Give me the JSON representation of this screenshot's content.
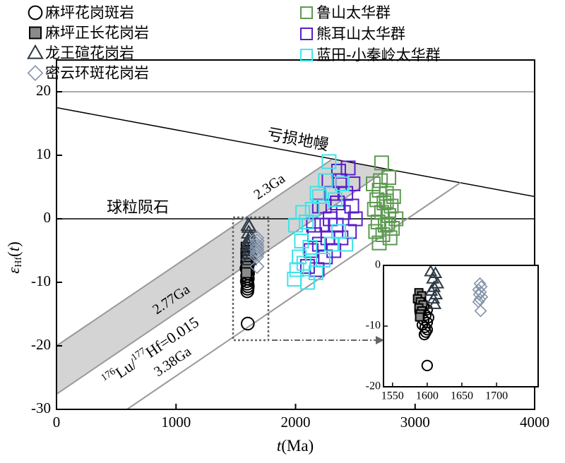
{
  "chart_data": {
    "type": "scatter",
    "xlim": [
      0,
      4000
    ],
    "ylim": [
      -30,
      25
    ],
    "xticks": [
      0,
      1000,
      2000,
      3000,
      4000
    ],
    "yticks": [
      -30,
      -20,
      -10,
      0,
      10,
      20
    ],
    "xlabel": [
      "t",
      "(Ma)"
    ],
    "ylabel": [
      "ε",
      "Hf",
      "(",
      "t",
      ")"
    ],
    "legend": "upper left",
    "band": {
      "between": [
        3,
        4
      ],
      "color": "#d4d4d4"
    },
    "lines": [
      {
        "x": [
          0,
          4000
        ],
        "y": [
          20,
          20
        ],
        "color": "#aaaaaa"
      },
      {
        "label": "亏损地幔",
        "x": [
          0,
          4000
        ],
        "y": [
          17.5,
          3.5
        ],
        "color": "#000000"
      },
      {
        "label": "球粒陨石",
        "x": [
          0,
          4000
        ],
        "y": [
          0,
          0
        ],
        "color": "#000000"
      },
      {
        "label": "2.3Ga",
        "x": [
          0,
          2300
        ],
        "y": [
          -20,
          9.3
        ],
        "color": "#999999"
      },
      {
        "label": "2.77Ga",
        "x": [
          0,
          2770
        ],
        "y": [
          -27.6,
          7.8
        ],
        "color": "#999999"
      },
      {
        "label": "3.38Ga",
        "x": [
          590,
          3380
        ],
        "y": [
          -30,
          5.7
        ],
        "color": "#999999"
      }
    ],
    "annotation": [
      "176",
      "Lu/",
      "177",
      "Hf=0.015"
    ],
    "series": [
      {
        "name": "麻坪花岗斑岩",
        "marker": "circle",
        "color": "#000000",
        "x": [
          1595,
          1600,
          1590,
          1598,
          1602,
          1595,
          1600,
          1593,
          1597,
          1600,
          1598,
          1596,
          1600
        ],
        "values": [
          -6.8,
          -7.3,
          -7.8,
          -8.2,
          -8.6,
          -9.0,
          -9.4,
          -9.8,
          -10.2,
          -10.6,
          -11.0,
          -11.4,
          -16.5
        ]
      },
      {
        "name": "麻坪正长花岗岩",
        "marker": "square",
        "color": "#000000",
        "fill": "#8a8a8a",
        "x": [
          1588,
          1592,
          1586,
          1590,
          1594,
          1588,
          1592,
          1590,
          1589
        ],
        "values": [
          -4.5,
          -5.0,
          -5.5,
          -6.0,
          -6.5,
          -7.0,
          -7.5,
          -8.0,
          -8.5
        ]
      },
      {
        "name": "龙王碹花岗岩",
        "marker": "triangle",
        "color": "#2c3844",
        "x": [
          1605,
          1612,
          1608,
          1615,
          1610,
          1606,
          1613,
          1609,
          1611
        ],
        "values": [
          -1.0,
          -1.3,
          -2.2,
          -3.0,
          -3.6,
          -4.2,
          -4.8,
          -5.5,
          -6.4
        ]
      },
      {
        "name": "密云环斑花岗岩",
        "marker": "diamond",
        "color": "#8393ab",
        "x": [
          1676,
          1678,
          1674,
          1677,
          1675,
          1679,
          1676,
          1674,
          1677
        ],
        "values": [
          -3.0,
          -3.5,
          -4.0,
          -4.4,
          -4.8,
          -5.2,
          -5.6,
          -6.0,
          -7.5
        ]
      },
      {
        "name": "鲁山太华群",
        "marker": "square",
        "color": "#5e9a52",
        "x": [
          2720,
          2780,
          2650,
          2700,
          2760,
          2820,
          2680,
          2740,
          2800,
          2660,
          2720,
          2780,
          2840,
          2690,
          2750,
          2810,
          2670,
          2730,
          2790,
          2700,
          2760,
          2710,
          2770
        ],
        "values": [
          8.8,
          6.5,
          5.5,
          4.5,
          4.0,
          3.5,
          3.0,
          2.5,
          2.0,
          1.5,
          1.0,
          0.5,
          0.0,
          -0.5,
          -1.0,
          -1.5,
          -2.0,
          -2.5,
          -3.0,
          -3.8,
          2.8,
          6.0,
          -0.8
        ]
      },
      {
        "name": "熊耳山太华群",
        "marker": "square",
        "color": "#5a1ec8",
        "x": [
          2100,
          2130,
          2160,
          2180,
          2200,
          2220,
          2240,
          2250,
          2270,
          2290,
          2300,
          2320,
          2340,
          2350,
          2370,
          2380,
          2400,
          2420,
          2440,
          2450,
          2470,
          2480,
          2500,
          2360,
          2280,
          2200,
          2150
        ],
        "values": [
          -7.5,
          -5,
          -2.5,
          -8,
          -4,
          -1,
          2,
          -6,
          -3,
          0,
          4,
          -5,
          -1,
          2.5,
          6,
          -3,
          1,
          4,
          8,
          -2,
          2,
          5.5,
          0,
          7.5,
          6,
          2,
          -1
        ]
      },
      {
        "name": "蓝田-小秦岭太华群",
        "marker": "square",
        "color": "#3ee3ea",
        "x": [
          1990,
          2010,
          2030,
          2000,
          2050,
          2070,
          2090,
          2100,
          2120,
          2140,
          2170,
          2200,
          2230,
          2250,
          2280,
          2300,
          2330,
          2360,
          2390,
          2420,
          2060,
          2180
        ],
        "values": [
          -9.5,
          -8,
          -6,
          -1,
          -3.5,
          -7,
          -0.5,
          -10,
          -4.5,
          1.5,
          -8.5,
          3.5,
          -6.5,
          6,
          9,
          -4,
          3,
          -2,
          5.5,
          -4,
          1,
          4
        ]
      }
    ],
    "inset": {
      "xlim": [
        1537,
        1760
      ],
      "ylim": [
        -20,
        0
      ],
      "xticks": [
        1550,
        1600,
        1650,
        1700
      ],
      "yticks": [
        -20,
        -10,
        0
      ]
    }
  }
}
